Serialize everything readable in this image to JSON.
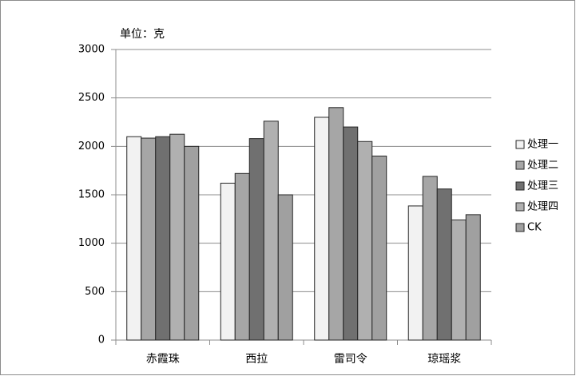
{
  "chart_data": {
    "type": "bar",
    "y_label": "单位：克",
    "categories": [
      "赤霞珠",
      "西拉",
      "雷司令",
      "琼瑶浆"
    ],
    "series": [
      {
        "name": "处理一",
        "color": "#f2f2f2",
        "values": [
          2100,
          1620,
          2300,
          1385
        ]
      },
      {
        "name": "处理二",
        "color": "#a6a6a6",
        "values": [
          2085,
          1720,
          2400,
          1690
        ]
      },
      {
        "name": "处理三",
        "color": "#707070",
        "values": [
          2100,
          2080,
          2200,
          1560
        ]
      },
      {
        "name": "处理四",
        "color": "#b0b0b0",
        "values": [
          2125,
          2260,
          2050,
          1240
        ]
      },
      {
        "name": "CK",
        "color": "#a0a0a0",
        "values": [
          2000,
          1500,
          1900,
          1295
        ]
      }
    ],
    "ylim": [
      0,
      3000
    ],
    "yticks": [
      0,
      500,
      1000,
      1500,
      2000,
      2500,
      3000
    ],
    "grid": true,
    "legend": "right"
  }
}
